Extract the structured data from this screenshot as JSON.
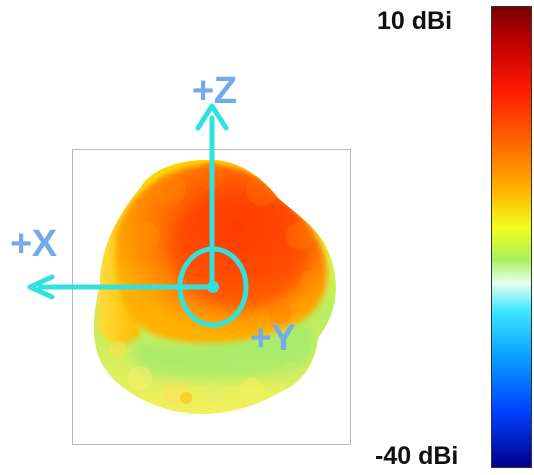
{
  "axes": {
    "z_label": "+Z",
    "x_label": "+X",
    "y_label": "+Y"
  },
  "colorbar": {
    "max_label": "10 dBi",
    "min_label": "-40 dBi",
    "colors": [
      "#7a0000",
      "#c00000",
      "#ff1a00",
      "#ff6a00",
      "#ffb400",
      "#f0ff1e",
      "#a8f060",
      "#e7fff0",
      "#3fe7ff",
      "#0aa0ff",
      "#0040ff",
      "#00008a"
    ]
  },
  "colors": {
    "axis": "#32e0e0",
    "axis_label": "#76a9ea",
    "pattern_high": "#ff5a00",
    "pattern_mid": "#ffd000",
    "pattern_low": "#8fe870"
  }
}
